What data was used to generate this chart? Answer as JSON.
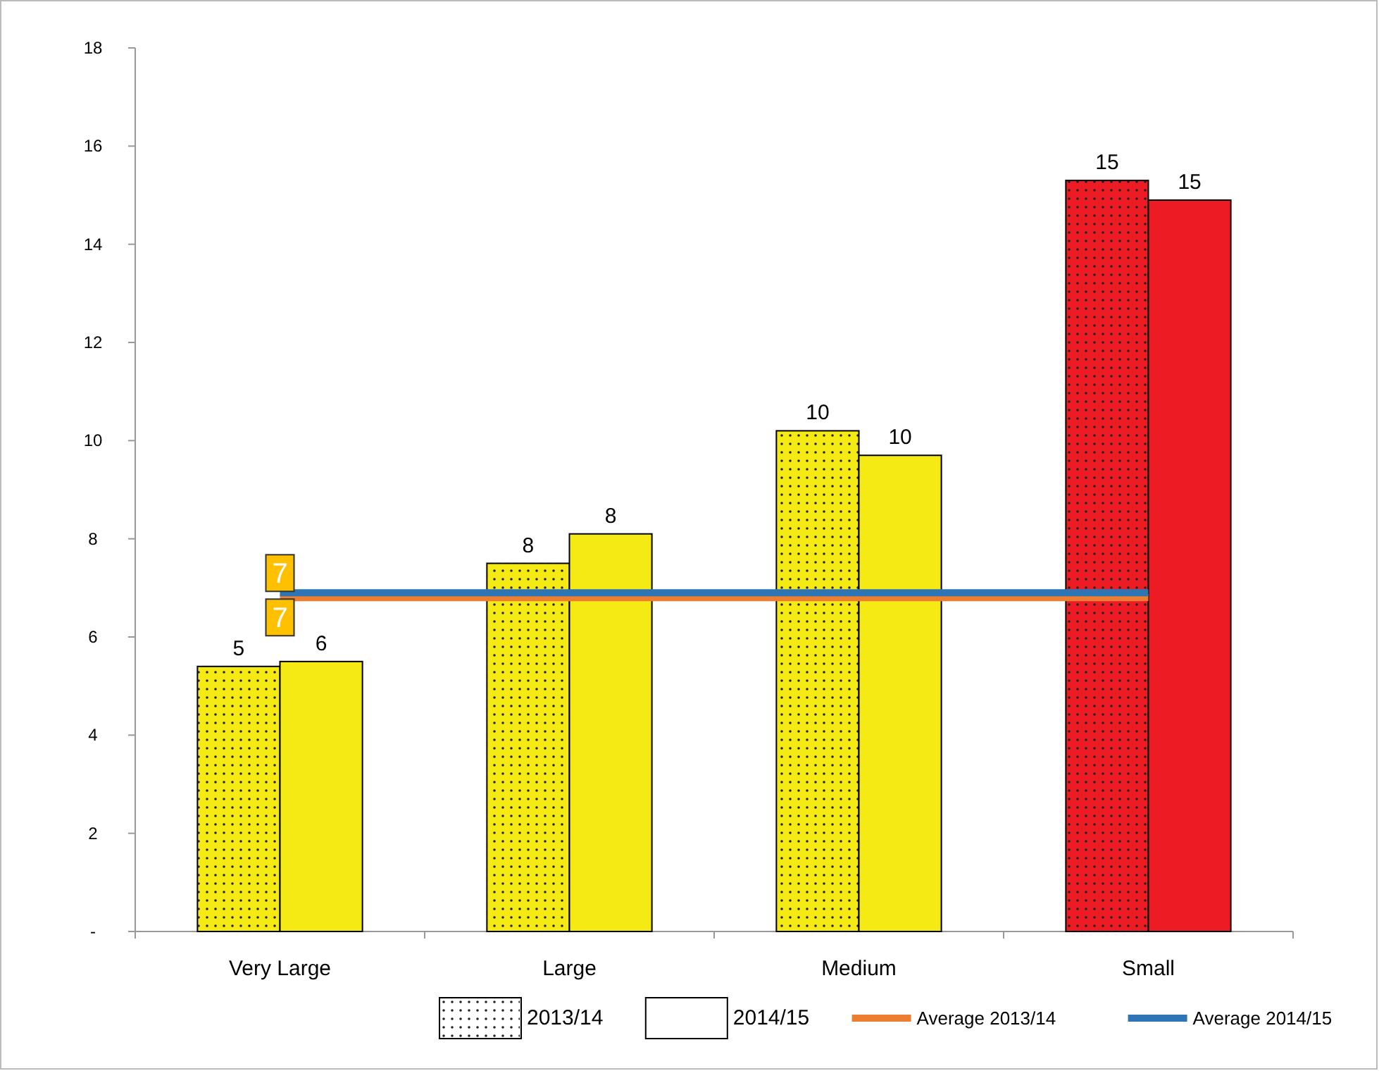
{
  "chart_data": {
    "type": "bar",
    "categories": [
      "Very Large",
      "Large",
      "Medium",
      "Small"
    ],
    "series": [
      {
        "name": "2013/14",
        "colors": [
          "#f5ea14",
          "#f5ea14",
          "#f5ea14",
          "#ed1c24"
        ],
        "values": [
          5.4,
          7.5,
          10.2,
          15.3
        ],
        "value_labels": [
          "5",
          "8",
          "10",
          "15"
        ]
      },
      {
        "name": "2014/15",
        "colors": [
          "#f5ea14",
          "#f5ea14",
          "#f5ea14",
          "#ed1c24"
        ],
        "values": [
          5.5,
          8.1,
          9.7,
          14.9
        ],
        "value_labels": [
          "6",
          "8",
          "10",
          "15"
        ]
      },
      {
        "name": "Average 2013/14",
        "type": "line",
        "color": "#ed7d31",
        "values": [
          6.8,
          6.8,
          6.8,
          6.8
        ],
        "value_labels": [
          "7",
          null,
          null,
          null
        ]
      },
      {
        "name": "Average 2014/15",
        "type": "line",
        "color": "#2e75b6",
        "values": [
          6.9,
          6.9,
          6.9,
          6.9
        ],
        "value_labels": [
          "7",
          null,
          null,
          null
        ]
      }
    ],
    "ylim": [
      0,
      18
    ],
    "yticks": [
      {
        "value": 0,
        "label": "-"
      },
      2,
      4,
      6,
      8,
      10,
      12,
      14,
      16,
      18
    ],
    "grid": false,
    "legend": "bottom",
    "marker": "none",
    "line_style": "solid"
  }
}
